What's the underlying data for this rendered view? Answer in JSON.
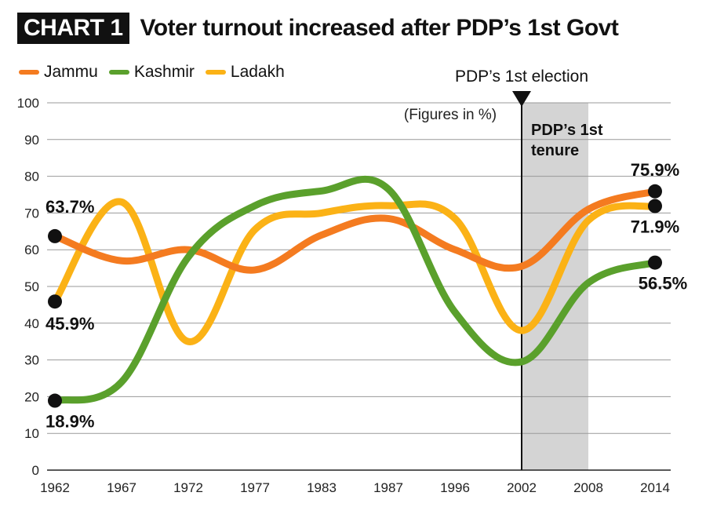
{
  "header": {
    "badge": "CHART 1",
    "title": "Voter turnout increased after PDP’s 1st Govt"
  },
  "colors": {
    "jammu": "#f47b20",
    "kashmir": "#5aa02c",
    "ladakh": "#fbb216",
    "shade": "#d4d4d4",
    "grid": "#999999"
  },
  "annotations": {
    "election_marker": "PDP’s 1st election",
    "figures_note": "(Figures in %)",
    "tenure_line1": "PDP’s 1st",
    "tenure_line2": "tenure"
  },
  "chart_data": {
    "type": "line",
    "title": "Voter turnout increased after PDP’s 1st Govt",
    "xlabel": "",
    "ylabel": "",
    "categories": [
      "1962",
      "1967",
      "1972",
      "1977",
      "1983",
      "1987",
      "1996",
      "2002",
      "2008",
      "2014"
    ],
    "ylim": [
      0,
      100
    ],
    "yticks": [
      0,
      10,
      20,
      30,
      40,
      50,
      60,
      70,
      80,
      90,
      100
    ],
    "grid": true,
    "legend": "top-left",
    "shaded_region": {
      "from": "2002",
      "to": "2008",
      "label": "PDP’s 1st tenure"
    },
    "series": [
      {
        "name": "Jammu",
        "color": "#f47b20",
        "values": [
          63.7,
          57,
          60,
          54.5,
          64,
          68.5,
          60,
          55.5,
          71,
          75.9
        ]
      },
      {
        "name": "Kashmir",
        "color": "#5aa02c",
        "values": [
          18.9,
          24,
          58,
          72,
          76,
          76.5,
          43,
          29.5,
          51,
          56.5
        ]
      },
      {
        "name": "Ladakh",
        "color": "#fbb216",
        "values": [
          45.9,
          73,
          35,
          65.5,
          70,
          72,
          68.5,
          38,
          68,
          71.9
        ]
      }
    ],
    "data_labels": [
      {
        "series": "Jammu",
        "index": 0,
        "text": "63.7%"
      },
      {
        "series": "Ladakh",
        "index": 0,
        "text": "45.9%"
      },
      {
        "series": "Kashmir",
        "index": 0,
        "text": "18.9%"
      },
      {
        "series": "Jammu",
        "index": 9,
        "text": "75.9%"
      },
      {
        "series": "Ladakh",
        "index": 9,
        "text": "71.9%"
      },
      {
        "series": "Kashmir",
        "index": 9,
        "text": "56.5%"
      }
    ]
  }
}
